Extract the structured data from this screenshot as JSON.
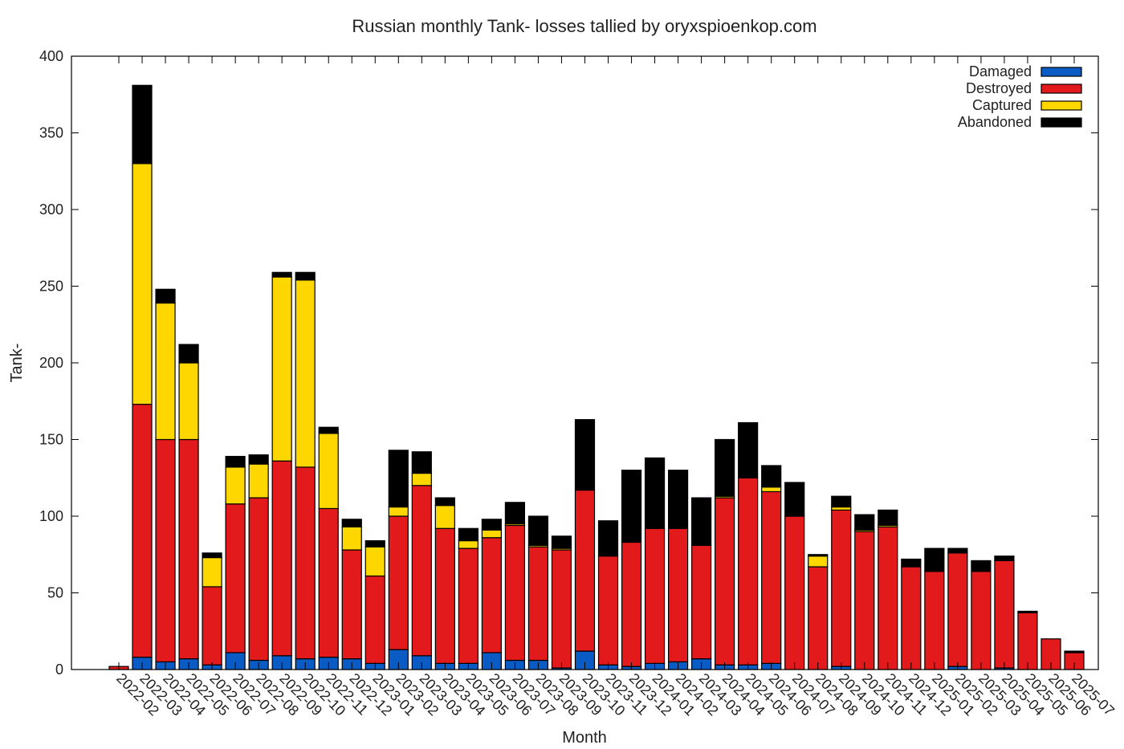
{
  "chart_data": {
    "type": "bar",
    "stacked": true,
    "title": "Russian monthly Tank- losses tallied by oryxspioenkop.com",
    "xlabel": "Month",
    "ylabel": "Tank-",
    "ylim": [
      0,
      400
    ],
    "yticks": [
      0,
      50,
      100,
      150,
      200,
      250,
      300,
      350,
      400
    ],
    "grid": false,
    "legend_position": "top-right",
    "categories": [
      "2022-02",
      "2022-03",
      "2022-04",
      "2022-05",
      "2022-06",
      "2022-07",
      "2022-08",
      "2022-09",
      "2022-10",
      "2022-11",
      "2022-12",
      "2023-01",
      "2023-02",
      "2023-03",
      "2023-04",
      "2023-05",
      "2023-06",
      "2023-07",
      "2023-08",
      "2023-09",
      "2023-10",
      "2023-11",
      "2023-12",
      "2024-01",
      "2024-02",
      "2024-03",
      "2024-04",
      "2024-05",
      "2024-06",
      "2024-07",
      "2024-08",
      "2024-09",
      "2024-10",
      "2024-11",
      "2024-12",
      "2025-01",
      "2025-02",
      "2025-03",
      "2025-04",
      "2025-05",
      "2025-06",
      "2025-07"
    ],
    "series": [
      {
        "name": "Damaged",
        "color": "#0a5bc4",
        "values": [
          0,
          8,
          5,
          7,
          3,
          11,
          6,
          9,
          7,
          8,
          7,
          4,
          13,
          9,
          4,
          4,
          11,
          6,
          6,
          1,
          12,
          3,
          2,
          4,
          5,
          7,
          3,
          3,
          4,
          0,
          0,
          2,
          0,
          0,
          0,
          0,
          2,
          0,
          1,
          0,
          0,
          0
        ]
      },
      {
        "name": "Destroyed",
        "color": "#e31a1c",
        "values": [
          2,
          165,
          145,
          143,
          51,
          97,
          106,
          127,
          125,
          97,
          71,
          57,
          87,
          111,
          88,
          75,
          75,
          88,
          74,
          77,
          105,
          71,
          81,
          88,
          87,
          74,
          109,
          122,
          112,
          100,
          67,
          102,
          90,
          93,
          67,
          64,
          74,
          64,
          70,
          37,
          20,
          11
        ]
      },
      {
        "name": "Captured",
        "color": "#ffd700",
        "values": [
          0,
          157,
          89,
          50,
          19,
          24,
          22,
          120,
          122,
          49,
          15,
          19,
          6,
          8,
          15,
          5,
          5,
          1,
          1,
          1,
          0,
          0,
          0,
          0,
          0,
          0,
          1,
          0,
          3,
          0,
          7,
          2,
          1,
          1,
          0,
          0,
          0,
          0,
          0,
          0,
          0,
          0
        ]
      },
      {
        "name": "Abandoned",
        "color": "#000000",
        "values": [
          0,
          51,
          9,
          12,
          3,
          7,
          6,
          3,
          5,
          4,
          5,
          4,
          37,
          14,
          5,
          8,
          7,
          14,
          19,
          8,
          46,
          23,
          47,
          46,
          38,
          31,
          37,
          36,
          14,
          22,
          1,
          7,
          10,
          10,
          5,
          15,
          3,
          7,
          3,
          1,
          0,
          1
        ]
      }
    ]
  }
}
